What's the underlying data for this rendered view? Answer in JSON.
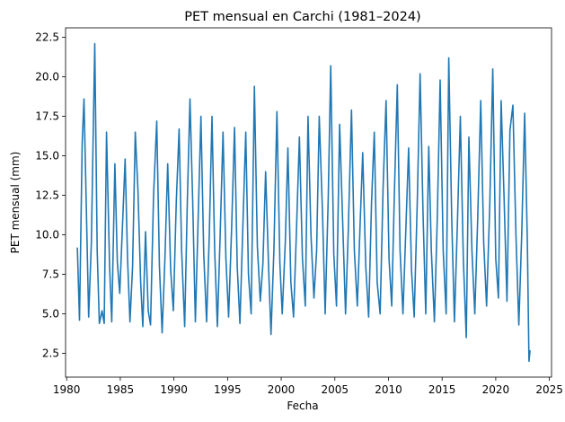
{
  "chart_data": {
    "type": "line",
    "title": "PET mensual en Carchi (1981–2024)",
    "xlabel": "Fecha",
    "ylabel": "PET mensual (mm)",
    "xlim": [
      1979.9,
      2025.2
    ],
    "ylim": [
      1.0,
      23.1
    ],
    "grid": false,
    "line_color": "#1f77b4",
    "x_ticks": [
      1980,
      1985,
      1990,
      1995,
      2000,
      2005,
      2010,
      2015,
      2020,
      2025
    ],
    "x_tick_labels": [
      "1980",
      "1985",
      "1990",
      "1995",
      "2000",
      "2005",
      "2010",
      "2015",
      "2020",
      "2025"
    ],
    "y_ticks": [
      2.5,
      5.0,
      7.5,
      10.0,
      12.5,
      15.0,
      17.5,
      20.0,
      22.5
    ],
    "y_tick_labels": [
      "2.5",
      "5.0",
      "7.5",
      "10.0",
      "12.5",
      "15.0",
      "17.5",
      "20.0",
      "22.5"
    ],
    "series": [
      {
        "points": [
          [
            1981.0,
            9.2
          ],
          [
            1981.2,
            4.6
          ],
          [
            1981.45,
            15.8
          ],
          [
            1981.62,
            18.6
          ],
          [
            1981.8,
            12.8
          ],
          [
            1982.05,
            4.8
          ],
          [
            1982.3,
            9.5
          ],
          [
            1982.62,
            22.1
          ],
          [
            1982.85,
            9.0
          ],
          [
            1983.05,
            4.4
          ],
          [
            1983.3,
            5.2
          ],
          [
            1983.5,
            4.4
          ],
          [
            1983.72,
            16.5
          ],
          [
            1984.0,
            8.0
          ],
          [
            1984.2,
            4.5
          ],
          [
            1984.5,
            14.5
          ],
          [
            1984.72,
            8.3
          ],
          [
            1984.95,
            6.3
          ],
          [
            1985.2,
            10.5
          ],
          [
            1985.45,
            14.8
          ],
          [
            1985.68,
            8.5
          ],
          [
            1985.9,
            4.5
          ],
          [
            1986.15,
            8.0
          ],
          [
            1986.4,
            16.5
          ],
          [
            1986.65,
            12.8
          ],
          [
            1986.9,
            7.0
          ],
          [
            1987.1,
            4.2
          ],
          [
            1987.35,
            10.2
          ],
          [
            1987.6,
            5.2
          ],
          [
            1987.82,
            4.3
          ],
          [
            1988.1,
            12.4
          ],
          [
            1988.4,
            17.2
          ],
          [
            1988.65,
            8.0
          ],
          [
            1988.9,
            3.8
          ],
          [
            1989.15,
            8.3
          ],
          [
            1989.42,
            14.5
          ],
          [
            1989.7,
            7.8
          ],
          [
            1989.95,
            5.2
          ],
          [
            1990.22,
            12.0
          ],
          [
            1990.48,
            16.7
          ],
          [
            1990.72,
            9.0
          ],
          [
            1991.0,
            4.2
          ],
          [
            1991.25,
            12.0
          ],
          [
            1991.5,
            18.6
          ],
          [
            1991.75,
            12.2
          ],
          [
            1992.0,
            4.5
          ],
          [
            1992.25,
            10.8
          ],
          [
            1992.52,
            17.5
          ],
          [
            1992.78,
            8.8
          ],
          [
            1993.05,
            4.5
          ],
          [
            1993.3,
            10.0
          ],
          [
            1993.55,
            17.5
          ],
          [
            1993.8,
            9.0
          ],
          [
            1994.05,
            4.2
          ],
          [
            1994.3,
            9.8
          ],
          [
            1994.58,
            16.5
          ],
          [
            1994.85,
            8.5
          ],
          [
            1995.1,
            4.8
          ],
          [
            1995.38,
            10.5
          ],
          [
            1995.65,
            16.8
          ],
          [
            1995.9,
            8.0
          ],
          [
            1996.15,
            4.4
          ],
          [
            1996.42,
            10.4
          ],
          [
            1996.7,
            16.5
          ],
          [
            1996.95,
            7.5
          ],
          [
            1997.2,
            5.0
          ],
          [
            1997.5,
            19.4
          ],
          [
            1997.78,
            9.3
          ],
          [
            1998.05,
            5.8
          ],
          [
            1998.3,
            8.2
          ],
          [
            1998.55,
            14.0
          ],
          [
            1998.82,
            8.0
          ],
          [
            1999.05,
            3.7
          ],
          [
            1999.32,
            9.0
          ],
          [
            1999.6,
            17.8
          ],
          [
            1999.88,
            8.2
          ],
          [
            2000.1,
            5.0
          ],
          [
            2000.38,
            9.5
          ],
          [
            2000.62,
            15.5
          ],
          [
            2000.9,
            7.0
          ],
          [
            2001.15,
            4.8
          ],
          [
            2001.42,
            10.2
          ],
          [
            2001.7,
            16.2
          ],
          [
            2001.98,
            8.5
          ],
          [
            2002.25,
            5.5
          ],
          [
            2002.5,
            17.5
          ],
          [
            2002.78,
            10.0
          ],
          [
            2003.05,
            6.0
          ],
          [
            2003.3,
            9.0
          ],
          [
            2003.55,
            17.5
          ],
          [
            2003.85,
            11.5
          ],
          [
            2004.1,
            5.0
          ],
          [
            2004.38,
            12.3
          ],
          [
            2004.62,
            20.7
          ],
          [
            2004.9,
            8.8
          ],
          [
            2005.15,
            5.5
          ],
          [
            2005.45,
            17.0
          ],
          [
            2005.72,
            11.0
          ],
          [
            2006.0,
            5.0
          ],
          [
            2006.25,
            10.2
          ],
          [
            2006.55,
            17.9
          ],
          [
            2006.82,
            9.0
          ],
          [
            2007.1,
            5.5
          ],
          [
            2007.35,
            10.5
          ],
          [
            2007.6,
            15.2
          ],
          [
            2007.88,
            8.0
          ],
          [
            2008.15,
            4.8
          ],
          [
            2008.42,
            12.0
          ],
          [
            2008.68,
            16.5
          ],
          [
            2008.95,
            7.0
          ],
          [
            2009.22,
            5.0
          ],
          [
            2009.5,
            13.0
          ],
          [
            2009.78,
            18.5
          ],
          [
            2010.05,
            8.5
          ],
          [
            2010.3,
            5.5
          ],
          [
            2010.55,
            12.5
          ],
          [
            2010.82,
            19.5
          ],
          [
            2011.08,
            9.0
          ],
          [
            2011.35,
            5.0
          ],
          [
            2011.6,
            10.0
          ],
          [
            2011.88,
            15.5
          ],
          [
            2012.15,
            7.8
          ],
          [
            2012.4,
            4.8
          ],
          [
            2012.68,
            12.0
          ],
          [
            2012.95,
            20.2
          ],
          [
            2013.22,
            11.5
          ],
          [
            2013.48,
            5.0
          ],
          [
            2013.75,
            15.6
          ],
          [
            2014.0,
            9.0
          ],
          [
            2014.28,
            4.5
          ],
          [
            2014.55,
            11.0
          ],
          [
            2014.82,
            19.8
          ],
          [
            2015.1,
            9.0
          ],
          [
            2015.38,
            5.0
          ],
          [
            2015.62,
            21.2
          ],
          [
            2015.9,
            11.0
          ],
          [
            2016.15,
            4.5
          ],
          [
            2016.42,
            10.5
          ],
          [
            2016.7,
            17.5
          ],
          [
            2016.98,
            8.5
          ],
          [
            2017.25,
            3.5
          ],
          [
            2017.5,
            16.2
          ],
          [
            2017.78,
            9.0
          ],
          [
            2018.05,
            5.0
          ],
          [
            2018.32,
            11.0
          ],
          [
            2018.6,
            18.5
          ],
          [
            2018.88,
            9.5
          ],
          [
            2019.15,
            5.5
          ],
          [
            2019.45,
            12.0
          ],
          [
            2019.72,
            20.5
          ],
          [
            2020.0,
            8.5
          ],
          [
            2020.25,
            6.0
          ],
          [
            2020.5,
            18.5
          ],
          [
            2020.78,
            12.3
          ],
          [
            2021.05,
            5.8
          ],
          [
            2021.32,
            16.6
          ],
          [
            2021.6,
            18.2
          ],
          [
            2021.88,
            10.0
          ],
          [
            2022.15,
            4.3
          ],
          [
            2022.42,
            10.0
          ],
          [
            2022.7,
            17.7
          ],
          [
            2022.95,
            9.5
          ],
          [
            2023.1,
            2.0
          ],
          [
            2023.2,
            2.7
          ]
        ]
      }
    ]
  }
}
